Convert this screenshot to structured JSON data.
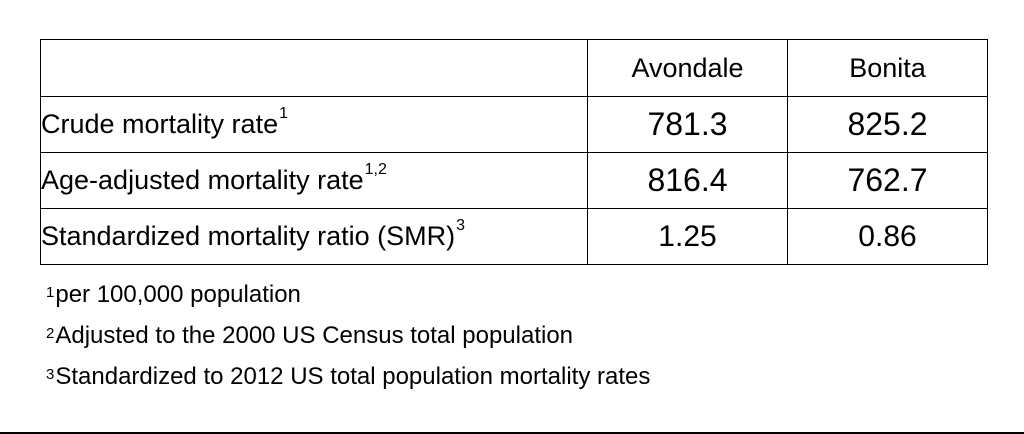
{
  "table": {
    "header": {
      "corner": "",
      "columns": [
        "Avondale",
        "Bonita"
      ]
    },
    "rows": [
      {
        "label": "Crude mortality rate",
        "marker": "1",
        "avondale": "781.3",
        "bonita": "825.2"
      },
      {
        "label": "Age-adjusted mortality rate",
        "marker": "1,2",
        "avondale": "816.4",
        "bonita": "762.7"
      },
      {
        "label": "Standardized mortality ratio (SMR)",
        "marker": "3",
        "avondale": "1.25",
        "bonita": "0.86"
      }
    ]
  },
  "footnotes": [
    {
      "marker": "1",
      "text": "per 100,000 population"
    },
    {
      "marker": "2",
      "text": "Adjusted to the 2000 US Census total population"
    },
    {
      "marker": "3",
      "text": "Standardized to 2012 US total population mortality rates"
    }
  ]
}
